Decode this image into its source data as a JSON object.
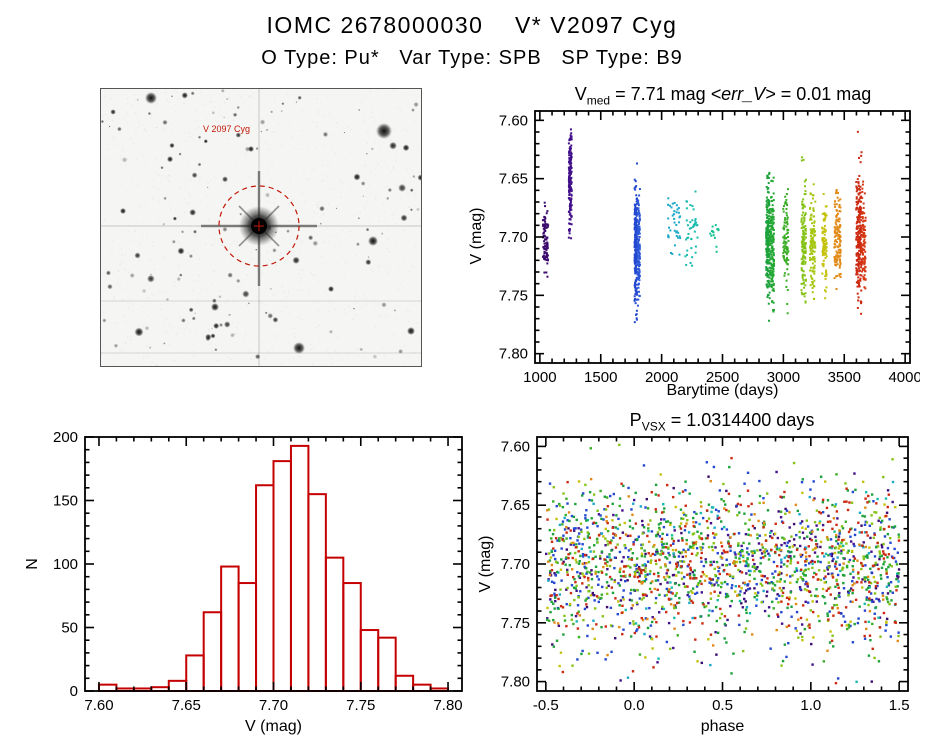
{
  "page": {
    "title": "IOMC 2678000030    V* V2097 Cyg",
    "subtitle": "O Type: Pu*   Var Type: SPB   SP Type: B9"
  },
  "finder": {
    "star_label": "V 2097 Cyg",
    "annotation_color": "#c21807"
  },
  "chart_data": [
    {
      "id": "lightcurve",
      "type": "scatter",
      "title": {
        "prefix": "V",
        "sub": "med",
        "mid": " = 7.71 mag ",
        "italic": "<err_V>",
        "suffix": " = 0.01 mag"
      },
      "xlabel": "Barytime (days)",
      "ylabel": "V (mag)",
      "xlim": [
        960,
        4040
      ],
      "ylim": [
        7.808,
        7.592
      ],
      "xticks": {
        "values": [
          1000,
          1500,
          2000,
          2500,
          3000,
          3500,
          4000
        ],
        "labels": [
          "1000",
          "1500",
          "2000",
          "2500",
          "3000",
          "3500",
          "4000"
        ],
        "minor_step": 100
      },
      "yticks": {
        "values": [
          7.6,
          7.65,
          7.7,
          7.75,
          7.8
        ],
        "labels": [
          "7.60",
          "7.65",
          "7.70",
          "7.75",
          "7.80"
        ],
        "minor_step": 0.01
      },
      "point_size": 2,
      "clusters": [
        {
          "x0": 1025,
          "x1": 1048,
          "yc": 7.701,
          "sd": 0.013,
          "ymin": 7.668,
          "ymax": 7.737,
          "n": 55,
          "color": "#3b0b6e"
        },
        {
          "x0": 1052,
          "x1": 1068,
          "yc": 7.706,
          "sd": 0.012,
          "ymin": 7.672,
          "ymax": 7.74,
          "n": 40,
          "color": "#3b0b6e"
        },
        {
          "x0": 1238,
          "x1": 1262,
          "yc": 7.649,
          "sd": 0.021,
          "ymin": 7.607,
          "ymax": 7.703,
          "n": 170,
          "color": "#41108a"
        },
        {
          "x0": 1778,
          "x1": 1798,
          "yc": 7.705,
          "sd": 0.026,
          "ymin": 7.627,
          "ymax": 7.783,
          "n": 210,
          "color": "#2448d0"
        },
        {
          "x0": 1802,
          "x1": 1822,
          "yc": 7.712,
          "sd": 0.021,
          "ymin": 7.64,
          "ymax": 7.782,
          "n": 120,
          "color": "#2c58d8"
        },
        {
          "x0": 2048,
          "x1": 2155,
          "yc": 7.689,
          "sd": 0.013,
          "ymin": 7.656,
          "ymax": 7.722,
          "n": 38,
          "color": "#1ca8c8"
        },
        {
          "x0": 2195,
          "x1": 2300,
          "yc": 7.696,
          "sd": 0.015,
          "ymin": 7.66,
          "ymax": 7.737,
          "n": 42,
          "color": "#18bcae"
        },
        {
          "x0": 2395,
          "x1": 2470,
          "yc": 7.699,
          "sd": 0.007,
          "ymin": 7.683,
          "ymax": 7.713,
          "n": 14,
          "color": "#15c193"
        },
        {
          "x0": 2858,
          "x1": 2888,
          "yc": 7.706,
          "sd": 0.026,
          "ymin": 7.643,
          "ymax": 7.777,
          "n": 210,
          "color": "#1da23b"
        },
        {
          "x0": 2893,
          "x1": 2923,
          "yc": 7.71,
          "sd": 0.024,
          "ymin": 7.648,
          "ymax": 7.776,
          "n": 150,
          "color": "#23a833"
        },
        {
          "x0": 2998,
          "x1": 3042,
          "yc": 7.706,
          "sd": 0.02,
          "ymin": 7.654,
          "ymax": 7.766,
          "n": 95,
          "color": "#3bad27"
        },
        {
          "x0": 3148,
          "x1": 3186,
          "yc": 7.701,
          "sd": 0.025,
          "ymin": 7.631,
          "ymax": 7.766,
          "n": 140,
          "color": "#86c319"
        },
        {
          "x0": 3218,
          "x1": 3262,
          "yc": 7.706,
          "sd": 0.022,
          "ymin": 7.645,
          "ymax": 7.762,
          "n": 115,
          "color": "#a6c712"
        },
        {
          "x0": 3318,
          "x1": 3356,
          "yc": 7.701,
          "sd": 0.02,
          "ymin": 7.647,
          "ymax": 7.757,
          "n": 95,
          "color": "#c4c20c"
        },
        {
          "x0": 3418,
          "x1": 3472,
          "yc": 7.7,
          "sd": 0.021,
          "ymin": 7.64,
          "ymax": 7.756,
          "n": 125,
          "color": "#e18a17"
        },
        {
          "x0": 3598,
          "x1": 3642,
          "yc": 7.701,
          "sd": 0.029,
          "ymin": 7.609,
          "ymax": 7.778,
          "n": 230,
          "color": "#cd2a12"
        },
        {
          "x0": 3646,
          "x1": 3676,
          "yc": 7.706,
          "sd": 0.021,
          "ymin": 7.649,
          "ymax": 7.762,
          "n": 90,
          "color": "#d63812"
        }
      ]
    },
    {
      "id": "histogram",
      "type": "bar",
      "xlabel": "V (mag)",
      "ylabel": "N",
      "color": "#c40000",
      "xlim": [
        7.592,
        7.808
      ],
      "ylim": [
        0,
        200
      ],
      "xticks": {
        "values": [
          7.6,
          7.65,
          7.7,
          7.75,
          7.8
        ],
        "labels": [
          "7.60",
          "7.65",
          "7.70",
          "7.75",
          "7.80"
        ],
        "minor_step": 0.01
      },
      "yticks": {
        "values": [
          0,
          50,
          100,
          150,
          200
        ],
        "labels": [
          "0",
          "50",
          "100",
          "150",
          "200"
        ],
        "minor_step": 10
      },
      "bin_start": 7.6,
      "bin_width": 0.01,
      "counts": [
        5,
        2,
        2,
        3,
        8,
        28,
        62,
        98,
        85,
        162,
        181,
        193,
        155,
        105,
        85,
        48,
        42,
        12,
        5,
        2
      ]
    },
    {
      "id": "phase",
      "type": "scatter",
      "title": {
        "prefix": "P",
        "sub": "VSX",
        "suffix": " = 1.0314400 days"
      },
      "xlabel": "phase",
      "ylabel": "V (mag)",
      "xlim": [
        -0.55,
        1.55
      ],
      "ylim": [
        7.808,
        7.592
      ],
      "xticks": {
        "values": [
          -0.5,
          0,
          0.5,
          1,
          1.5
        ],
        "labels": [
          "-0.5",
          "0.0",
          "0.5",
          "1.0",
          "1.5"
        ],
        "minor_step": 0.1
      },
      "yticks": {
        "values": [
          7.6,
          7.65,
          7.7,
          7.75,
          7.8
        ],
        "labels": [
          "7.60",
          "7.65",
          "7.70",
          "7.75",
          "7.80"
        ],
        "minor_step": 0.01
      },
      "point_size": 2.4,
      "x_range": [
        -0.5,
        1.5
      ],
      "y_center": 7.702,
      "y_sd": 0.034,
      "y_clip": [
        7.598,
        7.802
      ],
      "groups": [
        {
          "color": "#3b0b6e",
          "n": 95
        },
        {
          "color": "#41108a",
          "n": 170
        },
        {
          "color": "#2448d0",
          "n": 330
        },
        {
          "color": "#1ca8c8",
          "n": 60
        },
        {
          "color": "#18bcae",
          "n": 45
        },
        {
          "color": "#15c193",
          "n": 14
        },
        {
          "color": "#1da23b",
          "n": 360
        },
        {
          "color": "#3bad27",
          "n": 95
        },
        {
          "color": "#86c319",
          "n": 255
        },
        {
          "color": "#c4c20c",
          "n": 95
        },
        {
          "color": "#e18a17",
          "n": 125
        },
        {
          "color": "#cd2a12",
          "n": 320
        }
      ]
    }
  ]
}
